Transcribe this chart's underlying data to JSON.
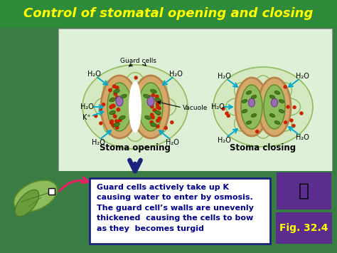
{
  "title": "Control of stomatal opening and closing",
  "title_color": "#FFFF00",
  "title_bg": "#2E8B3A",
  "bg_color": "#3A7D44",
  "diagram_bg": "#DFF0D8",
  "outer_cell_color": "#C8DEB8",
  "guard_outer_color": "#D4A96A",
  "guard_inner_color": "#6B8E23",
  "dot_color": "#CC2200",
  "vacuole_color": "#9B59B6",
  "chloro_color": "#4A7A20",
  "stoma_opening_label": "Stoma opening",
  "stoma_closing_label": "Stoma closing",
  "guard_cells_label": "Guard cells",
  "vacuole_label": "Vacuole",
  "body_text": "Guard cells actively take up K\ncausing water to enter by osmosis.\nThe guard cell’s walls are unevenly\nthickened  causing the cells to bow\nas they  becomes turgid",
  "fig_label": "Fig. 32.4",
  "fig_label_color": "#FFFF00",
  "fig_box_bg": "#5B2D8E",
  "text_box_bg": "#FFFFFF",
  "text_color_body": "#00008B",
  "arrow_up_color": "#1A237E",
  "h2o_color": "#000000",
  "k_color": "#000000",
  "title_fontsize": 13,
  "label_fontsize": 8.5,
  "annot_fontsize": 7,
  "body_fontsize": 8
}
